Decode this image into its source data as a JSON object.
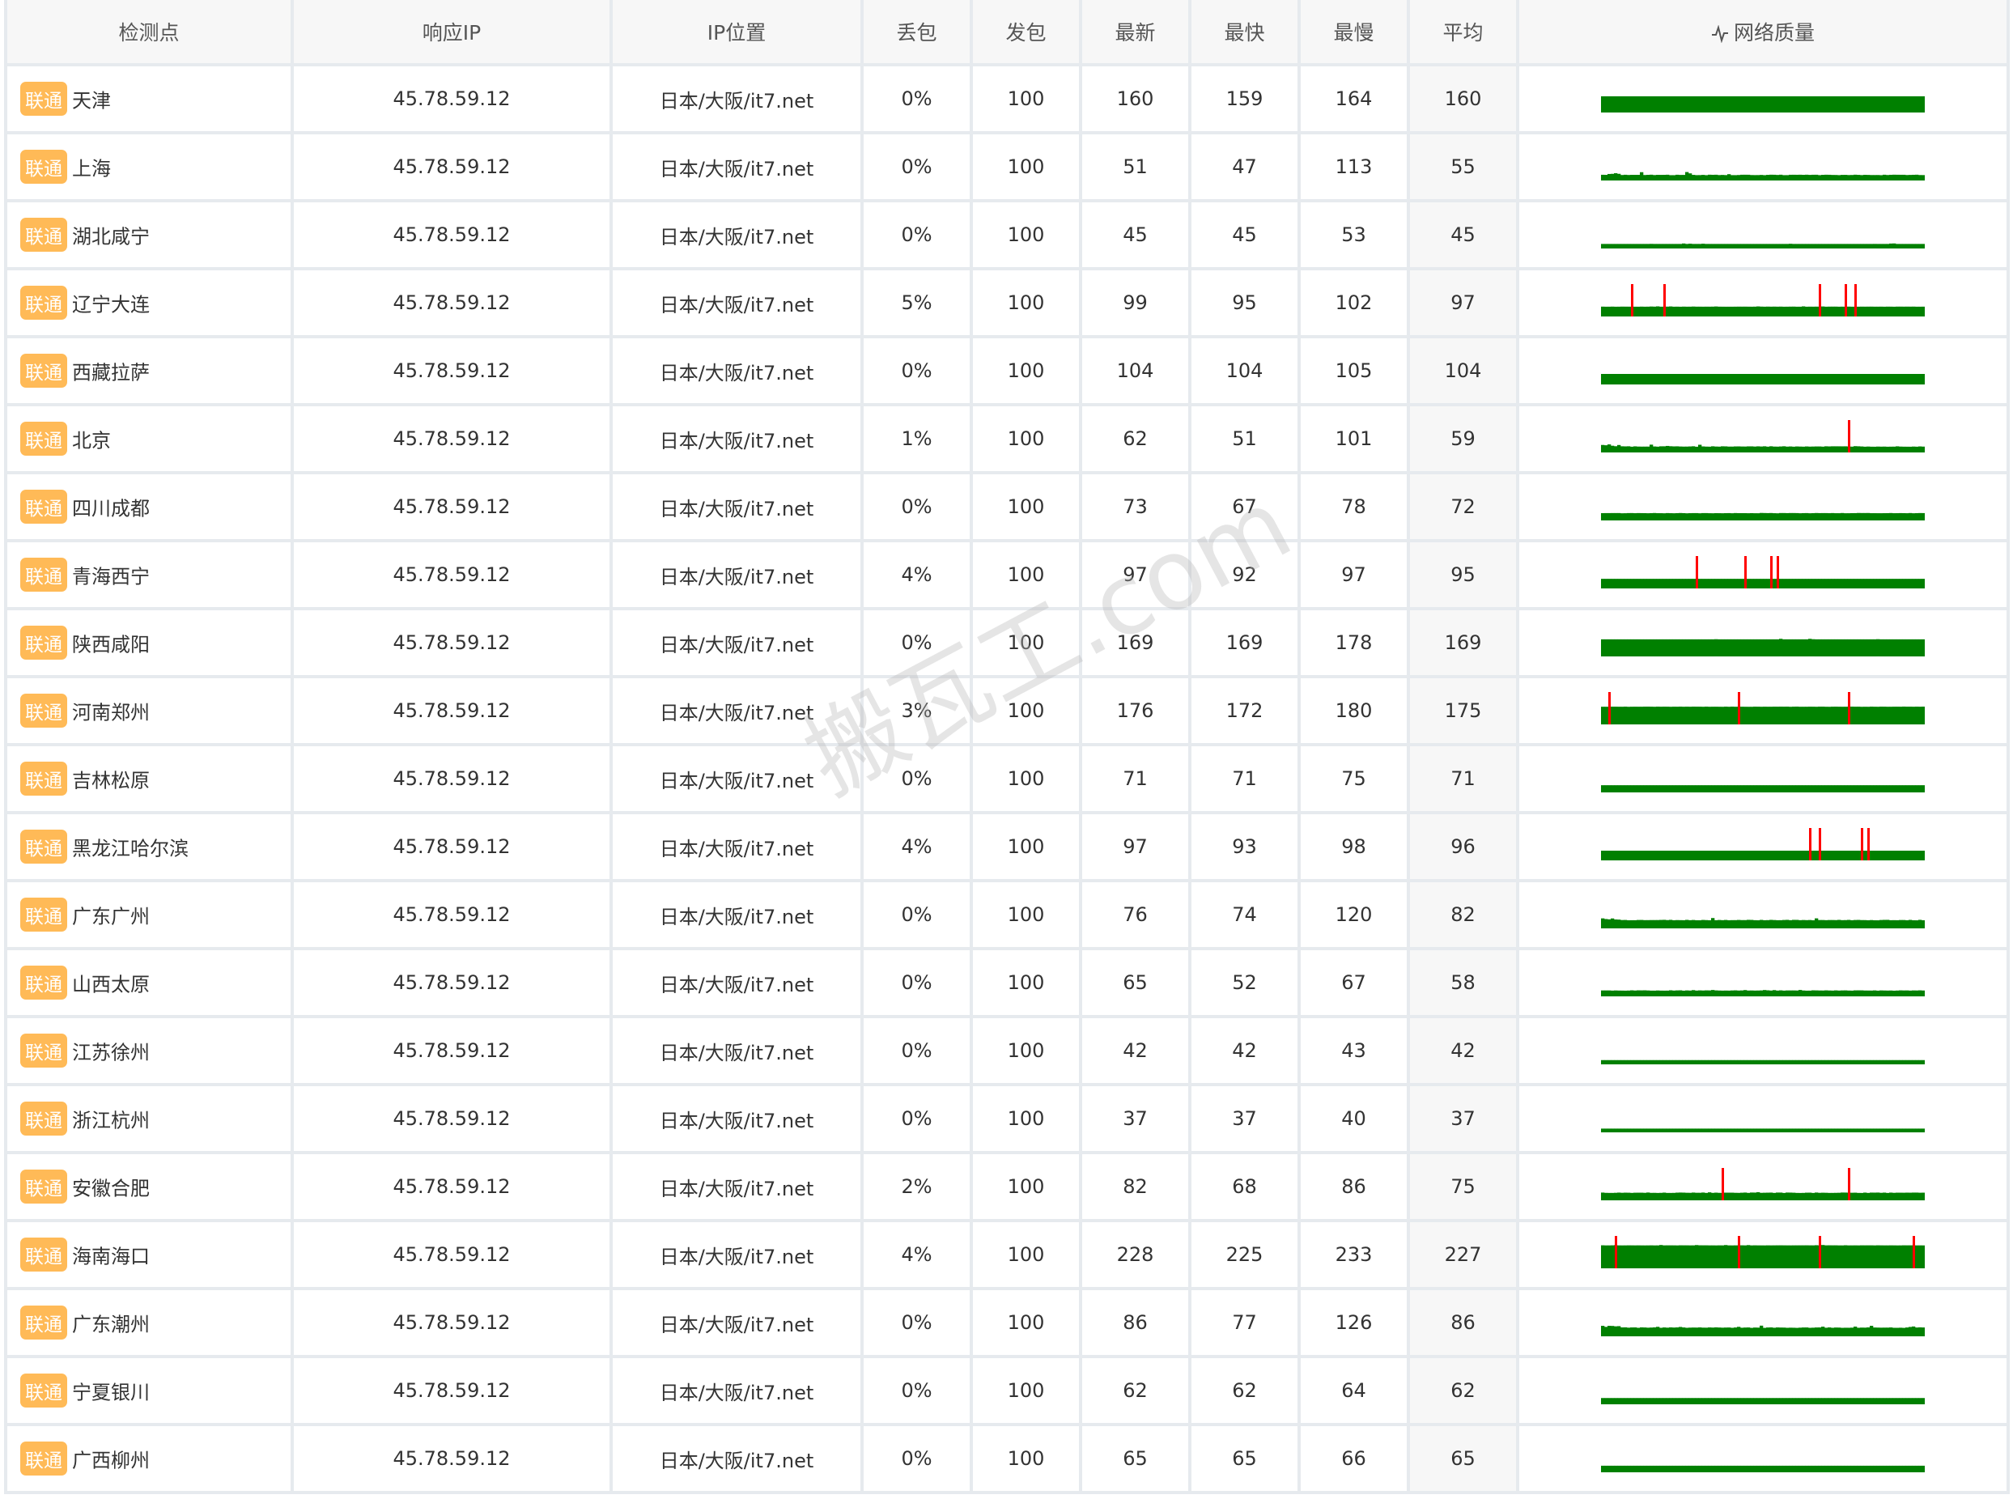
{
  "header": {
    "node": "检测点",
    "ip": "响应IP",
    "location": "IP位置",
    "loss": "丢包",
    "sent": "发包",
    "latest": "最新",
    "fastest": "最快",
    "slowest": "最慢",
    "average": "平均",
    "quality": "网络质量",
    "quality_icon": "pulse-icon"
  },
  "colors": {
    "badge": "#ffba57",
    "good": "#008000",
    "loss": "#ff0000"
  },
  "watermark": "搬瓦工.com",
  "rows": [
    {
      "isp": "联通",
      "node": "天津",
      "ip": "45.78.59.12",
      "location": "日本/大阪/it7.net",
      "loss": "0%",
      "sent": "100",
      "latest": "160",
      "fastest": "159",
      "slowest": "164",
      "avg": "160",
      "lost_samples": []
    },
    {
      "isp": "联通",
      "node": "上海",
      "ip": "45.78.59.12",
      "location": "日本/大阪/it7.net",
      "loss": "0%",
      "sent": "100",
      "latest": "51",
      "fastest": "47",
      "slowest": "113",
      "avg": "55",
      "lost_samples": []
    },
    {
      "isp": "联通",
      "node": "湖北咸宁",
      "ip": "45.78.59.12",
      "location": "日本/大阪/it7.net",
      "loss": "0%",
      "sent": "100",
      "latest": "45",
      "fastest": "45",
      "slowest": "53",
      "avg": "45",
      "lost_samples": []
    },
    {
      "isp": "联通",
      "node": "辽宁大连",
      "ip": "45.78.59.12",
      "location": "日本/大阪/it7.net",
      "loss": "5%",
      "sent": "100",
      "latest": "99",
      "fastest": "95",
      "slowest": "102",
      "avg": "97",
      "lost_samples": [
        9,
        19,
        67,
        75,
        78
      ]
    },
    {
      "isp": "联通",
      "node": "西藏拉萨",
      "ip": "45.78.59.12",
      "location": "日本/大阪/it7.net",
      "loss": "0%",
      "sent": "100",
      "latest": "104",
      "fastest": "104",
      "slowest": "105",
      "avg": "104",
      "lost_samples": []
    },
    {
      "isp": "联通",
      "node": "北京",
      "ip": "45.78.59.12",
      "location": "日本/大阪/it7.net",
      "loss": "1%",
      "sent": "100",
      "latest": "62",
      "fastest": "51",
      "slowest": "101",
      "avg": "59",
      "lost_samples": [
        76
      ]
    },
    {
      "isp": "联通",
      "node": "四川成都",
      "ip": "45.78.59.12",
      "location": "日本/大阪/it7.net",
      "loss": "0%",
      "sent": "100",
      "latest": "73",
      "fastest": "67",
      "slowest": "78",
      "avg": "72",
      "lost_samples": []
    },
    {
      "isp": "联通",
      "node": "青海西宁",
      "ip": "45.78.59.12",
      "location": "日本/大阪/it7.net",
      "loss": "4%",
      "sent": "100",
      "latest": "97",
      "fastest": "92",
      "slowest": "97",
      "avg": "95",
      "lost_samples": [
        29,
        44,
        52,
        54
      ]
    },
    {
      "isp": "联通",
      "node": "陕西咸阳",
      "ip": "45.78.59.12",
      "location": "日本/大阪/it7.net",
      "loss": "0%",
      "sent": "100",
      "latest": "169",
      "fastest": "169",
      "slowest": "178",
      "avg": "169",
      "lost_samples": []
    },
    {
      "isp": "联通",
      "node": "河南郑州",
      "ip": "45.78.59.12",
      "location": "日本/大阪/it7.net",
      "loss": "3%",
      "sent": "100",
      "latest": "176",
      "fastest": "172",
      "slowest": "180",
      "avg": "175",
      "lost_samples": [
        2,
        42,
        76
      ]
    },
    {
      "isp": "联通",
      "node": "吉林松原",
      "ip": "45.78.59.12",
      "location": "日本/大阪/it7.net",
      "loss": "0%",
      "sent": "100",
      "latest": "71",
      "fastest": "71",
      "slowest": "75",
      "avg": "71",
      "lost_samples": []
    },
    {
      "isp": "联通",
      "node": "黑龙江哈尔滨",
      "ip": "45.78.59.12",
      "location": "日本/大阪/it7.net",
      "loss": "4%",
      "sent": "100",
      "latest": "97",
      "fastest": "93",
      "slowest": "98",
      "avg": "96",
      "lost_samples": [
        64,
        67,
        80,
        82
      ]
    },
    {
      "isp": "联通",
      "node": "广东广州",
      "ip": "45.78.59.12",
      "location": "日本/大阪/it7.net",
      "loss": "0%",
      "sent": "100",
      "latest": "76",
      "fastest": "74",
      "slowest": "120",
      "avg": "82",
      "lost_samples": []
    },
    {
      "isp": "联通",
      "node": "山西太原",
      "ip": "45.78.59.12",
      "location": "日本/大阪/it7.net",
      "loss": "0%",
      "sent": "100",
      "latest": "65",
      "fastest": "52",
      "slowest": "67",
      "avg": "58",
      "lost_samples": []
    },
    {
      "isp": "联通",
      "node": "江苏徐州",
      "ip": "45.78.59.12",
      "location": "日本/大阪/it7.net",
      "loss": "0%",
      "sent": "100",
      "latest": "42",
      "fastest": "42",
      "slowest": "43",
      "avg": "42",
      "lost_samples": []
    },
    {
      "isp": "联通",
      "node": "浙江杭州",
      "ip": "45.78.59.12",
      "location": "日本/大阪/it7.net",
      "loss": "0%",
      "sent": "100",
      "latest": "37",
      "fastest": "37",
      "slowest": "40",
      "avg": "37",
      "lost_samples": []
    },
    {
      "isp": "联通",
      "node": "安徽合肥",
      "ip": "45.78.59.12",
      "location": "日本/大阪/it7.net",
      "loss": "2%",
      "sent": "100",
      "latest": "82",
      "fastest": "68",
      "slowest": "86",
      "avg": "75",
      "lost_samples": [
        37,
        76
      ]
    },
    {
      "isp": "联通",
      "node": "海南海口",
      "ip": "45.78.59.12",
      "location": "日本/大阪/it7.net",
      "loss": "4%",
      "sent": "100",
      "latest": "228",
      "fastest": "225",
      "slowest": "233",
      "avg": "227",
      "lost_samples": [
        4,
        42,
        67,
        96
      ]
    },
    {
      "isp": "联通",
      "node": "广东潮州",
      "ip": "45.78.59.12",
      "location": "日本/大阪/it7.net",
      "loss": "0%",
      "sent": "100",
      "latest": "86",
      "fastest": "77",
      "slowest": "126",
      "avg": "86",
      "lost_samples": []
    },
    {
      "isp": "联通",
      "node": "宁夏银川",
      "ip": "45.78.59.12",
      "location": "日本/大阪/it7.net",
      "loss": "0%",
      "sent": "100",
      "latest": "62",
      "fastest": "62",
      "slowest": "64",
      "avg": "62",
      "lost_samples": []
    },
    {
      "isp": "联通",
      "node": "广西柳州",
      "ip": "45.78.59.12",
      "location": "日本/大阪/it7.net",
      "loss": "0%",
      "sent": "100",
      "latest": "65",
      "fastest": "65",
      "slowest": "66",
      "avg": "65",
      "lost_samples": []
    }
  ]
}
